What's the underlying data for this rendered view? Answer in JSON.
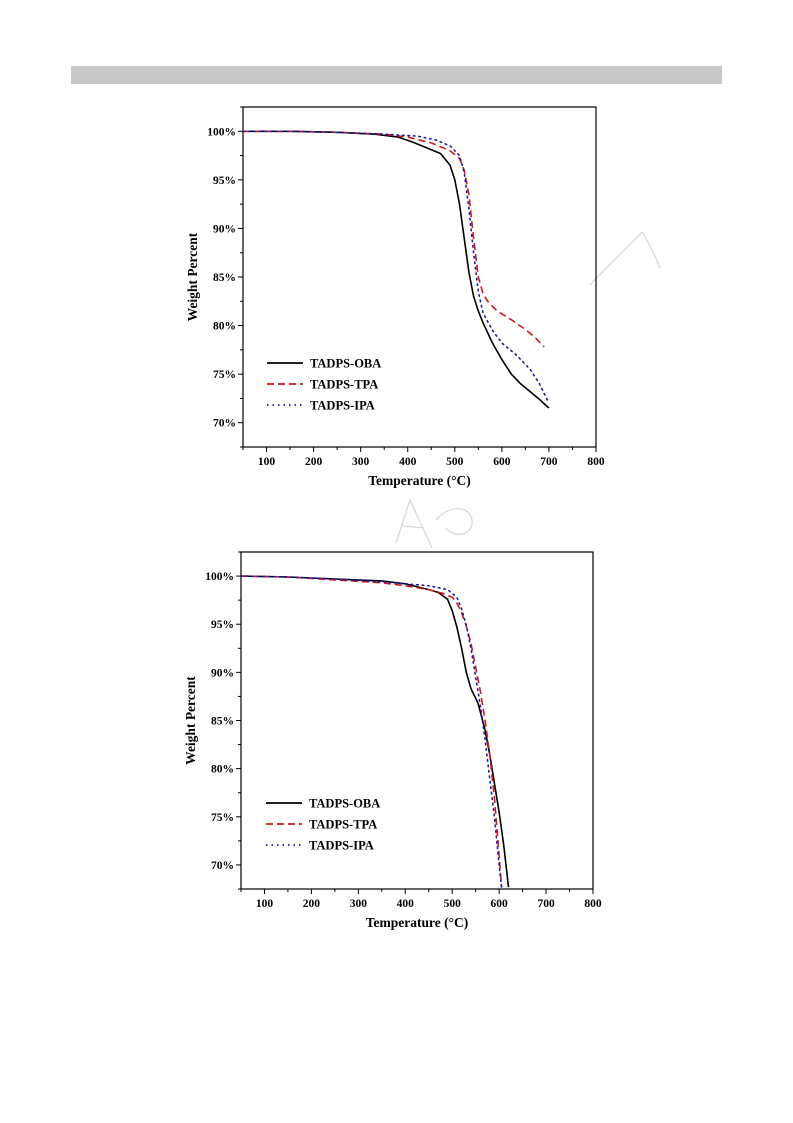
{
  "chart_data": [
    {
      "type": "line",
      "xlabel": "Temperature (°C)",
      "ylabel": "Weight Percent",
      "xlim": [
        50,
        800
      ],
      "ylim": [
        67.5,
        102.5
      ],
      "xticks": [
        100,
        200,
        300,
        400,
        500,
        600,
        700,
        800
      ],
      "yticks": [
        70,
        75,
        80,
        85,
        90,
        95,
        100
      ],
      "ytick_suffix": "%",
      "grid": false,
      "legend_position": "bottom-left",
      "colors": {
        "TADPS-OBA": "#000000",
        "TADPS-TPA": "#d01818",
        "TADPS-IPA": "#1a1aa8"
      },
      "series": [
        {
          "name": "TADPS-OBA",
          "style": "solid",
          "x": [
            50,
            150,
            250,
            330,
            380,
            410,
            440,
            470,
            490,
            500,
            510,
            520,
            530,
            540,
            550,
            560,
            580,
            600,
            620,
            640,
            660,
            680,
            700
          ],
          "y": [
            100,
            100,
            99.9,
            99.7,
            99.4,
            98.9,
            98.3,
            97.7,
            96.5,
            95.0,
            92.5,
            89.0,
            85.5,
            83.0,
            81.5,
            80.3,
            78.2,
            76.5,
            75.0,
            74.0,
            73.2,
            72.4,
            71.5
          ]
        },
        {
          "name": "TADPS-TPA",
          "style": "dashed",
          "x": [
            50,
            150,
            250,
            350,
            400,
            450,
            490,
            510,
            520,
            530,
            540,
            550,
            560,
            570,
            590,
            620,
            650,
            670,
            690
          ],
          "y": [
            100,
            100,
            99.9,
            99.7,
            99.4,
            98.8,
            98.0,
            97.2,
            96.0,
            93.5,
            89.0,
            85.0,
            83.3,
            82.5,
            81.5,
            80.6,
            79.6,
            78.8,
            77.8
          ]
        },
        {
          "name": "TADPS-IPA",
          "style": "dotted",
          "x": [
            50,
            150,
            250,
            350,
            420,
            460,
            490,
            510,
            520,
            530,
            540,
            550,
            560,
            580,
            600,
            630,
            660,
            680,
            700
          ],
          "y": [
            100,
            100,
            99.9,
            99.7,
            99.5,
            99.1,
            98.5,
            97.5,
            95.8,
            92.0,
            87.5,
            83.5,
            81.3,
            79.5,
            78.2,
            77.0,
            75.5,
            74.0,
            72.0
          ]
        }
      ]
    },
    {
      "type": "line",
      "xlabel": "Temperature (°C)",
      "ylabel": "Weight Percent",
      "xlim": [
        50,
        800
      ],
      "ylim": [
        67.5,
        102.5
      ],
      "xticks": [
        100,
        200,
        300,
        400,
        500,
        600,
        700,
        800
      ],
      "yticks": [
        70,
        75,
        80,
        85,
        90,
        95,
        100
      ],
      "ytick_suffix": "%",
      "grid": false,
      "legend_position": "bottom-left",
      "colors": {
        "TADPS-OBA": "#000000",
        "TADPS-TPA": "#d01818",
        "TADPS-IPA": "#1a1aa8"
      },
      "series": [
        {
          "name": "TADPS-OBA",
          "style": "solid",
          "x": [
            50,
            150,
            250,
            350,
            400,
            450,
            470,
            490,
            500,
            510,
            520,
            530,
            540,
            555,
            570,
            580,
            590,
            600,
            610,
            620
          ],
          "y": [
            100,
            99.9,
            99.7,
            99.5,
            99.2,
            98.6,
            98.3,
            97.6,
            96.4,
            94.7,
            92.5,
            90.0,
            88.3,
            86.8,
            84.0,
            81.5,
            78.5,
            75.5,
            72.0,
            67.7
          ]
        },
        {
          "name": "TADPS-TPA",
          "style": "dashed",
          "x": [
            50,
            150,
            250,
            350,
            400,
            450,
            480,
            500,
            510,
            520,
            530,
            540,
            550,
            560,
            570,
            580,
            590,
            600,
            605
          ],
          "y": [
            100,
            99.9,
            99.6,
            99.3,
            99.0,
            98.6,
            98.2,
            97.8,
            97.2,
            96.2,
            94.8,
            93.0,
            90.5,
            88.0,
            85.0,
            81.5,
            77.0,
            71.0,
            67.7
          ]
        },
        {
          "name": "TADPS-IPA",
          "style": "dotted",
          "x": [
            50,
            150,
            250,
            350,
            400,
            450,
            490,
            510,
            520,
            530,
            540,
            550,
            560,
            570,
            580,
            590,
            600,
            605
          ],
          "y": [
            100,
            99.9,
            99.7,
            99.4,
            99.2,
            99.0,
            98.6,
            97.8,
            96.6,
            94.9,
            92.5,
            89.5,
            86.5,
            83.0,
            79.0,
            75.0,
            70.0,
            67.7
          ]
        }
      ]
    }
  ]
}
